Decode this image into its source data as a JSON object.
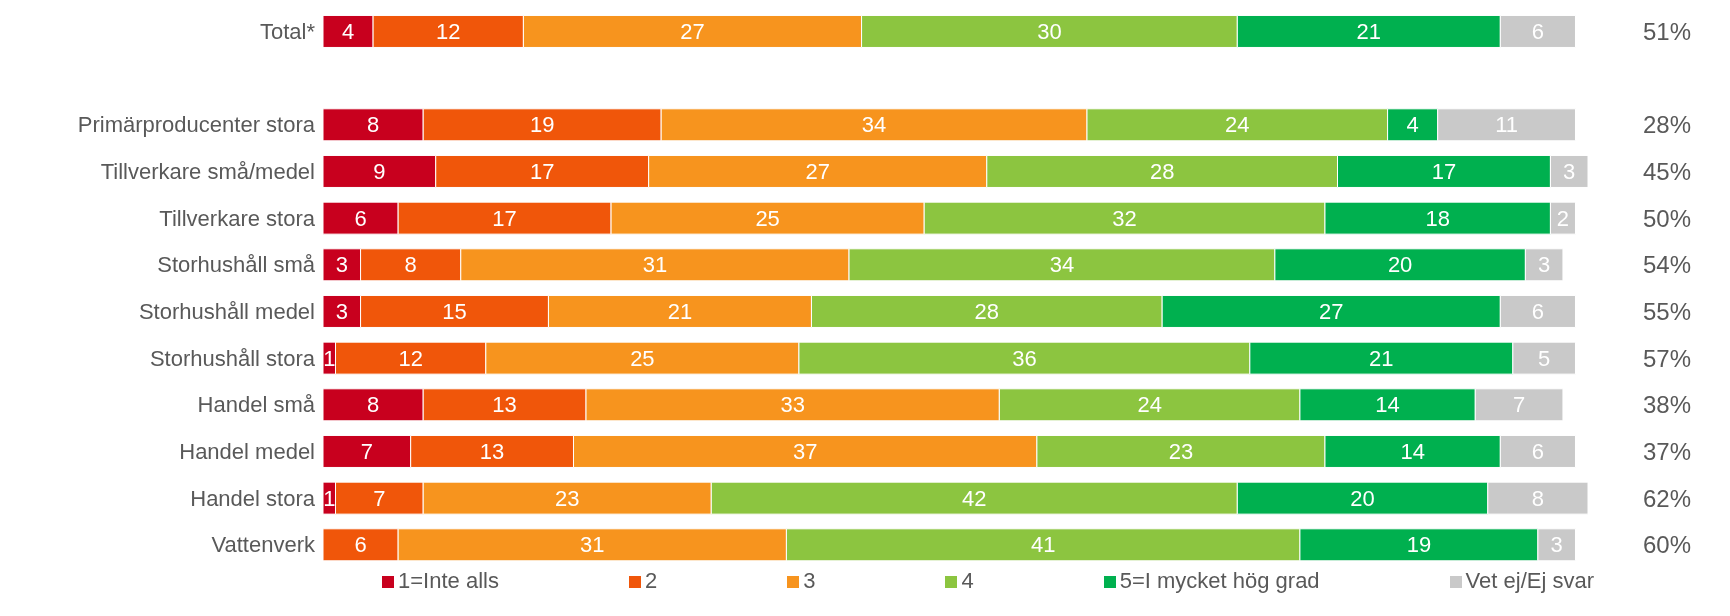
{
  "chart_data": {
    "type": "bar",
    "orientation": "horizontal",
    "stacked": true,
    "legend": "bottom",
    "tick_labels": "y",
    "xlim": [
      0,
      101
    ],
    "categories": [
      "Total*",
      null,
      "Primärproducenter stora",
      "Tillverkare små/medel",
      "Tillverkare stora",
      "Storhushåll små",
      "Storhushåll medel",
      "Storhushåll stora",
      "Handel små",
      "Handel medel",
      "Handel stora",
      "Vattenverk"
    ],
    "series": [
      {
        "name": "1=Inte alls",
        "color": "#c8001e",
        "values": [
          4,
          null,
          8,
          9,
          6,
          3,
          3,
          1,
          8,
          7,
          1,
          0
        ],
        "value_labels": [
          "4",
          null,
          "8",
          "9",
          "6",
          "3",
          "3",
          "1",
          "8",
          "7",
          "1",
          null
        ]
      },
      {
        "name": "2",
        "color": "#f0560a",
        "values": [
          12,
          null,
          19,
          17,
          17,
          8,
          15,
          12,
          13,
          13,
          7,
          6
        ],
        "value_labels": [
          "12",
          null,
          "19",
          "17",
          "17",
          "8",
          "15",
          "12",
          "13",
          "13",
          "7",
          "6"
        ]
      },
      {
        "name": "3",
        "color": "#f7941e",
        "values": [
          27,
          null,
          34,
          27,
          25,
          31,
          21,
          25,
          33,
          37,
          23,
          31
        ],
        "value_labels": [
          "27",
          null,
          "34",
          "27",
          "25",
          "31",
          "21",
          "25",
          "33",
          "37",
          "23",
          "31"
        ]
      },
      {
        "name": "4",
        "color": "#8cc540",
        "values": [
          30,
          null,
          24,
          28,
          32,
          34,
          28,
          36,
          24,
          23,
          42,
          41
        ],
        "value_labels": [
          "30",
          null,
          "24",
          "28",
          "32",
          "34",
          "28",
          "36",
          "24",
          "23",
          "42",
          "41"
        ]
      },
      {
        "name": "5=I mycket hög grad",
        "color": "#00b04f",
        "values": [
          21,
          null,
          4,
          17,
          18,
          20,
          27,
          21,
          14,
          14,
          20,
          19
        ],
        "value_labels": [
          "21",
          null,
          "4",
          "17",
          "18",
          "20",
          "27",
          "21",
          "14",
          "14",
          "20",
          "19"
        ]
      },
      {
        "name": "Vet ej/Ej svar",
        "color": "#c9c9c9",
        "values": [
          6,
          null,
          11,
          3,
          2,
          3,
          6,
          5,
          7,
          6,
          8,
          3
        ],
        "value_labels": [
          "6",
          null,
          "11",
          "3",
          "2",
          "3",
          "6",
          "5",
          "7",
          "6",
          "8",
          "3"
        ]
      }
    ],
    "annotations": [
      "51%",
      "28%",
      "45%",
      "50%",
      "54%",
      "55%",
      "57%",
      "38%",
      "37%",
      "62%",
      "60%"
    ]
  }
}
